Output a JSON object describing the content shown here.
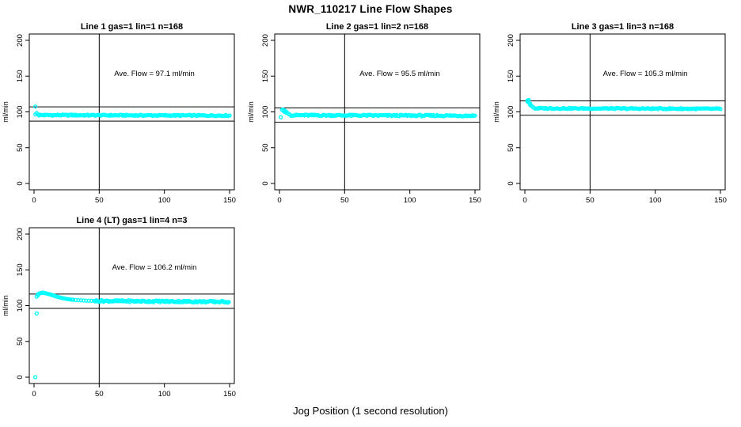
{
  "page": {
    "main_title": "NWR_110217  Line Flow Shapes",
    "x_axis_label": "Jog Position (1 second resolution)"
  },
  "colors": {
    "points": "#00FFFF",
    "axis": "#000000",
    "background": "#FFFFFF"
  },
  "chart_data": [
    {
      "type": "scatter",
      "title": "Line 1 gas=1 lin=1 n=168",
      "line": 1,
      "gas": 1,
      "lin": 1,
      "n": 168,
      "annotation": "Ave. Flow =  97.1  ml/min",
      "ave_flow_ml_min": 97.1,
      "ylabel": "ml/min",
      "xlim": [
        0,
        150
      ],
      "ylim": [
        0,
        200
      ],
      "xticks": [
        0,
        50,
        100,
        150
      ],
      "yticks": [
        0,
        50,
        100,
        150,
        200
      ],
      "vline_x": 50,
      "hlines": [
        107.1,
        87.1
      ],
      "points": [
        [
          1,
          107.5
        ],
        [
          1,
          96.5
        ],
        [
          2,
          98.5
        ],
        [
          3,
          96.5
        ]
      ],
      "band": {
        "x_from": 4,
        "x_to": 150,
        "y_from": 95.6,
        "y_to": 94.9,
        "wiggle": 0.8,
        "step": 1
      }
    },
    {
      "type": "scatter",
      "title": "Line 2 gas=1 lin=2 n=168",
      "line": 2,
      "gas": 1,
      "lin": 2,
      "n": 168,
      "annotation": "Ave. Flow =  95.5  ml/min",
      "ave_flow_ml_min": 95.5,
      "ylabel": "ml/min",
      "xlim": [
        0,
        150
      ],
      "ylim": [
        0,
        200
      ],
      "xticks": [
        0,
        50,
        100,
        150
      ],
      "yticks": [
        0,
        50,
        100,
        150,
        200
      ],
      "vline_x": 50,
      "hlines": [
        105.5,
        85.5
      ],
      "points": [
        [
          1,
          92.5
        ],
        [
          2,
          103
        ],
        [
          3,
          103
        ],
        [
          3,
          101.5
        ],
        [
          4,
          102
        ],
        [
          4,
          100
        ],
        [
          5,
          100.5
        ],
        [
          5,
          99
        ],
        [
          6,
          98.5
        ],
        [
          7,
          97.2
        ],
        [
          8,
          96.2
        ]
      ],
      "band": {
        "x_from": 9,
        "x_to": 150,
        "y_from": 95.4,
        "y_to": 94.7,
        "wiggle": 1.0,
        "step": 1
      }
    },
    {
      "type": "scatter",
      "title": "Line 3 gas=1 lin=3 n=168",
      "line": 3,
      "gas": 1,
      "lin": 3,
      "n": 168,
      "annotation": "Ave. Flow =  105.3  ml/min",
      "ave_flow_ml_min": 105.3,
      "ylabel": "ml/min",
      "xlim": [
        0,
        150
      ],
      "ylim": [
        0,
        200
      ],
      "xticks": [
        0,
        50,
        100,
        150
      ],
      "yticks": [
        0,
        50,
        100,
        150,
        200
      ],
      "vline_x": 50,
      "hlines": [
        115.3,
        95.3
      ],
      "points": [
        [
          2,
          116
        ],
        [
          2,
          114.5
        ],
        [
          3,
          116.5
        ],
        [
          3,
          113
        ],
        [
          4,
          111.5
        ],
        [
          4,
          110
        ],
        [
          5,
          108.5
        ],
        [
          6,
          107
        ],
        [
          7,
          105.8
        ]
      ],
      "band": {
        "x_from": 8,
        "x_to": 150,
        "y_from": 105,
        "y_to": 104.3,
        "wiggle": 0.8,
        "step": 1
      }
    },
    {
      "type": "scatter",
      "title": "Line 4 (LT) gas=1 lin=4 n=3",
      "line": 4,
      "gas": 1,
      "lin": 4,
      "n": 3,
      "annotation": "Ave. Flow =  106.2  ml/min",
      "ave_flow_ml_min": 106.2,
      "ylabel": "ml/min",
      "xlim": [
        0,
        150
      ],
      "ylim": [
        0,
        200
      ],
      "xticks": [
        0,
        50,
        100,
        150
      ],
      "yticks": [
        0,
        50,
        100,
        150,
        200
      ],
      "vline_x": 50,
      "hlines": [
        116.2,
        96.2
      ],
      "points": [
        [
          1,
          0
        ],
        [
          2,
          89
        ],
        [
          2,
          112.5
        ],
        [
          3,
          114.5
        ],
        [
          3,
          116
        ],
        [
          4,
          117
        ],
        [
          5,
          117.5
        ],
        [
          6,
          118
        ],
        [
          7,
          118
        ],
        [
          8,
          117.7
        ],
        [
          9,
          117.2
        ],
        [
          10,
          116.8
        ],
        [
          11,
          116.3
        ],
        [
          12,
          115.8
        ],
        [
          13,
          115.3
        ],
        [
          14,
          114.7
        ],
        [
          15,
          114.1
        ],
        [
          16,
          113.5
        ],
        [
          17,
          112.9
        ],
        [
          18,
          112.3
        ],
        [
          19,
          111.8
        ],
        [
          20,
          111.3
        ],
        [
          21,
          110.9
        ],
        [
          22,
          110.5
        ],
        [
          23,
          110.1
        ],
        [
          24,
          109.7
        ],
        [
          25,
          109.4
        ],
        [
          26,
          109.1
        ],
        [
          27,
          108.8
        ],
        [
          28,
          108.6
        ],
        [
          29,
          108.4
        ],
        [
          30,
          108.2
        ],
        [
          32,
          107.9
        ],
        [
          34,
          107.6
        ],
        [
          36,
          107.4
        ],
        [
          38,
          107.2
        ],
        [
          40,
          107
        ],
        [
          42,
          106.9
        ],
        [
          44,
          106.8
        ],
        [
          46,
          106.7
        ]
      ],
      "band": {
        "x_from": 47,
        "x_to": 150,
        "y_from": 106.6,
        "y_to": 105.3,
        "wiggle": 1.2,
        "step": 0.8
      }
    }
  ]
}
